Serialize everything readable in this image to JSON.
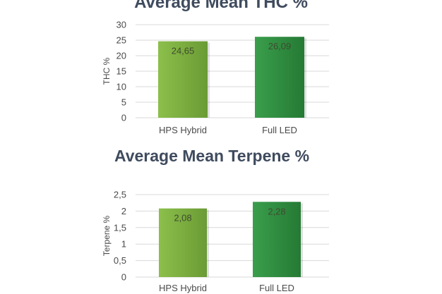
{
  "chart_data": [
    {
      "type": "bar",
      "title": "Average Mean THC %",
      "ylabel": "THC %",
      "xlabel": "",
      "categories": [
        "HPS Hybrid",
        "Full LED"
      ],
      "values": [
        24.65,
        26.09
      ],
      "value_labels": [
        "24,65",
        "26,09"
      ],
      "ylim": [
        0,
        30
      ],
      "yticks": [
        0,
        5,
        10,
        15,
        20,
        25,
        30
      ],
      "ytick_labels": [
        "0",
        "5",
        "10",
        "15",
        "20",
        "25",
        "30"
      ],
      "grid": true,
      "legend": "none",
      "colors": [
        "#7aad3f",
        "#2e8b3e"
      ]
    },
    {
      "type": "bar",
      "title": "Average Mean Terpene %",
      "ylabel": "Terpene %",
      "xlabel": "",
      "categories": [
        "HPS Hybrid",
        "Full LED"
      ],
      "values": [
        2.08,
        2.28
      ],
      "value_labels": [
        "2,08",
        "2,28"
      ],
      "ylim": [
        0,
        2.5
      ],
      "yticks": [
        0,
        0.5,
        1,
        1.5,
        2,
        2.5
      ],
      "ytick_labels": [
        "0",
        "0,5",
        "1",
        "1,5",
        "2",
        "2,5"
      ],
      "grid": true,
      "legend": "none",
      "colors": [
        "#7aad3f",
        "#2e8b3e"
      ]
    }
  ]
}
